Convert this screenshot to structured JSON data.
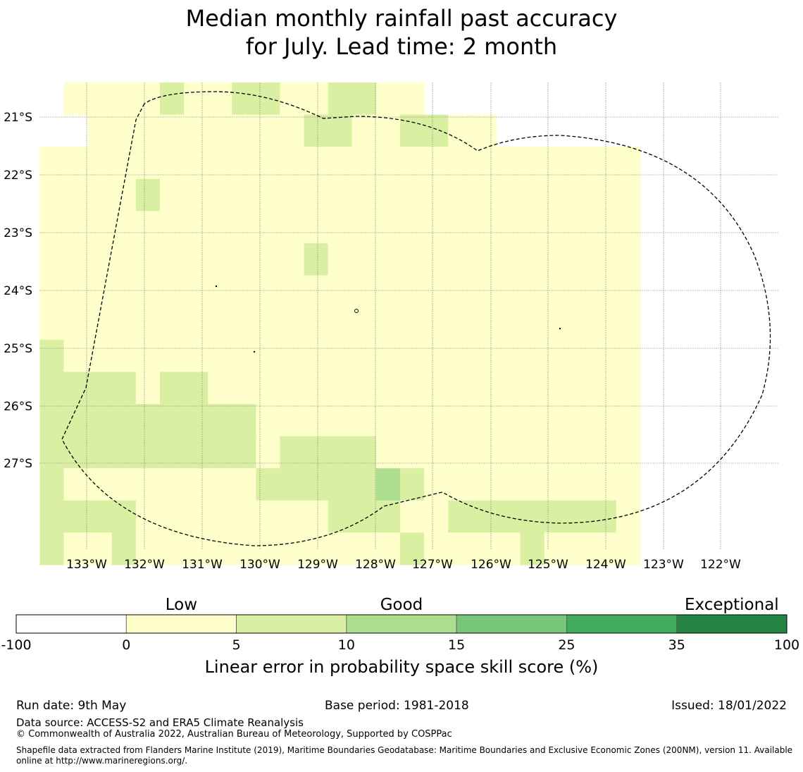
{
  "chart_data": {
    "type": "heatmap",
    "title_line1": "Median monthly rainfall past accuracy",
    "title_line2": "for July. Lead time: 2 month",
    "x_ticks": [
      "133°W",
      "132°W",
      "131°W",
      "130°W",
      "129°W",
      "128°W",
      "127°W",
      "126°W",
      "125°W",
      "124°W",
      "123°W",
      "122°W"
    ],
    "y_ticks": [
      "21°S",
      "22°S",
      "23°S",
      "24°S",
      "25°S",
      "26°S",
      "27°S"
    ],
    "grid": true,
    "cell_values_note": "",
    "rows_top_to_bottom": [
      [
        null,
        1,
        1,
        1,
        1,
        6,
        1,
        1,
        6,
        6,
        1,
        1,
        6,
        6,
        1,
        1,
        null,
        null,
        null,
        null,
        null,
        null,
        null,
        null,
        null
      ],
      [
        null,
        null,
        1,
        1,
        0,
        0,
        0,
        0,
        1,
        1,
        1,
        6,
        6,
        1,
        1,
        6,
        6,
        1,
        1,
        null,
        null,
        null,
        null,
        null,
        null
      ],
      [
        0,
        0,
        0,
        0,
        1,
        1,
        1,
        0,
        0,
        1,
        1,
        1,
        1,
        1,
        1,
        0,
        0,
        0,
        0,
        1,
        0,
        0,
        0,
        0,
        0
      ],
      [
        1,
        0,
        0,
        0,
        6,
        1,
        1,
        0,
        0,
        1,
        1,
        0,
        1,
        1,
        1,
        0,
        0,
        0,
        0,
        0,
        1,
        1,
        1,
        1,
        1
      ],
      [
        1,
        1,
        1,
        0,
        0,
        0,
        0,
        0,
        0,
        1,
        1,
        1,
        1,
        1,
        1,
        1,
        1,
        1,
        0,
        0,
        0,
        0,
        0,
        0,
        0
      ],
      [
        0,
        0,
        0,
        0,
        0,
        0,
        1,
        0,
        0,
        0,
        0,
        6,
        0,
        0,
        0,
        0,
        0,
        0,
        0,
        0,
        0,
        0,
        0,
        0,
        0
      ],
      [
        1,
        0,
        0,
        0,
        0,
        0,
        1,
        1,
        1,
        1,
        1,
        1,
        1,
        0,
        0,
        0,
        0,
        0,
        0,
        0,
        0,
        0,
        0,
        0,
        0
      ],
      [
        1,
        1,
        0,
        0,
        0,
        0,
        1,
        0,
        0,
        0,
        0,
        1,
        1,
        0,
        0,
        0,
        0,
        0,
        0,
        0,
        0,
        0,
        0,
        0,
        0
      ],
      [
        6,
        1,
        0,
        0,
        0,
        0,
        1,
        1,
        1,
        0,
        0,
        1,
        1,
        1,
        1,
        1,
        0,
        0,
        0,
        0,
        0,
        0,
        0,
        0,
        1
      ],
      [
        6,
        6,
        6,
        6,
        1,
        6,
        6,
        1,
        1,
        0,
        0,
        0,
        0,
        0,
        1,
        1,
        1,
        1,
        1,
        1,
        0,
        1,
        1,
        0,
        0
      ],
      [
        6,
        6,
        6,
        6,
        6,
        6,
        6,
        6,
        6,
        1,
        1,
        1,
        0,
        0,
        0,
        0,
        1,
        1,
        1,
        1,
        1,
        1,
        1,
        1,
        1
      ],
      [
        6,
        6,
        6,
        6,
        6,
        6,
        6,
        6,
        6,
        1,
        6,
        6,
        6,
        6,
        1,
        0,
        1,
        1,
        1,
        1,
        1,
        0,
        0,
        0,
        0
      ],
      [
        6,
        1,
        1,
        1,
        1,
        1,
        1,
        1,
        1,
        6,
        6,
        6,
        6,
        6,
        11,
        6,
        1,
        1,
        1,
        1,
        1,
        1,
        1,
        1,
        1
      ],
      [
        6,
        6,
        6,
        6,
        1,
        1,
        1,
        1,
        1,
        1,
        1,
        1,
        6,
        6,
        6,
        1,
        1,
        6,
        6,
        6,
        6,
        6,
        6,
        6,
        1
      ],
      [
        6,
        1,
        1,
        6,
        1,
        1,
        1,
        1,
        0,
        1,
        1,
        1,
        1,
        1,
        1,
        6,
        1,
        1,
        1,
        1,
        6,
        1,
        1,
        1,
        1
      ]
    ],
    "colorbar": {
      "tick_labels": [
        "-100",
        "0",
        "5",
        "10",
        "15",
        "25",
        "35",
        "100"
      ],
      "colors": [
        "#ffffff",
        "#ffffcc",
        "#d9f0a3",
        "#addd8e",
        "#78c679",
        "#41ab5d",
        "#238443"
      ],
      "category_labels": [
        "Low",
        "Good",
        "Exceptional"
      ],
      "label": "Linear error in probability space skill score (%)"
    }
  },
  "footer": {
    "run_date": "Run date: 9th May",
    "base_period": "Base period: 1981-2018",
    "issued": "Issued: 18/01/2022",
    "data_source": "Data source: ACCESS-S2 and ERA5 Climate Reanalysis",
    "copyright": "© Commonwealth of Australia 2022, Australian Bureau of Meteorology, Supported by COSPPac",
    "shapefile": "Shapefile data extracted from Flanders Marine Institute (2019), Maritime Boundaries Geodatabase: Maritime Boundaries and Exclusive Economic Zones (200NM), version 11. Available online at http://www.marineregions.org/."
  }
}
